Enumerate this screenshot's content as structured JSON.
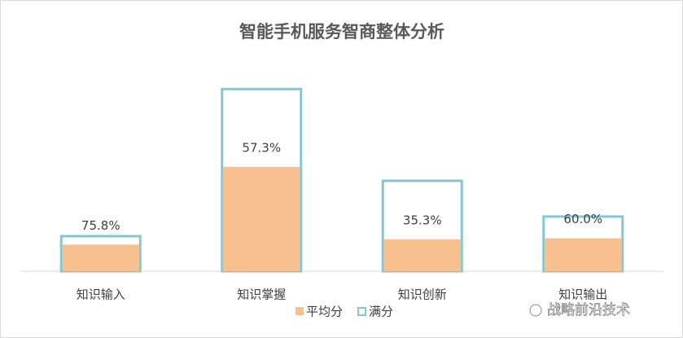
{
  "chart_data": {
    "type": "overlap_bar",
    "title": "智能手机服务智商整体分析",
    "categories": [
      "知识输入",
      "知识掌握",
      "知识创新",
      "知识输出"
    ],
    "series": [
      {
        "name": "平均分",
        "color": "#f9c08f",
        "values": [
          7.6,
          29.8,
          9.1,
          9.4
        ]
      },
      {
        "name": "满分",
        "color": "#86c6d1",
        "values": [
          10,
          52,
          25.8,
          15.6
        ]
      }
    ],
    "rates": [
      75.8,
      57.3,
      35.3,
      60.0
    ],
    "rate_labels": [
      "75.8%",
      "57.3%",
      "35.3%",
      "60.0%"
    ],
    "ylim": [
      0,
      53
    ],
    "watermark": "战略前沿技术"
  }
}
